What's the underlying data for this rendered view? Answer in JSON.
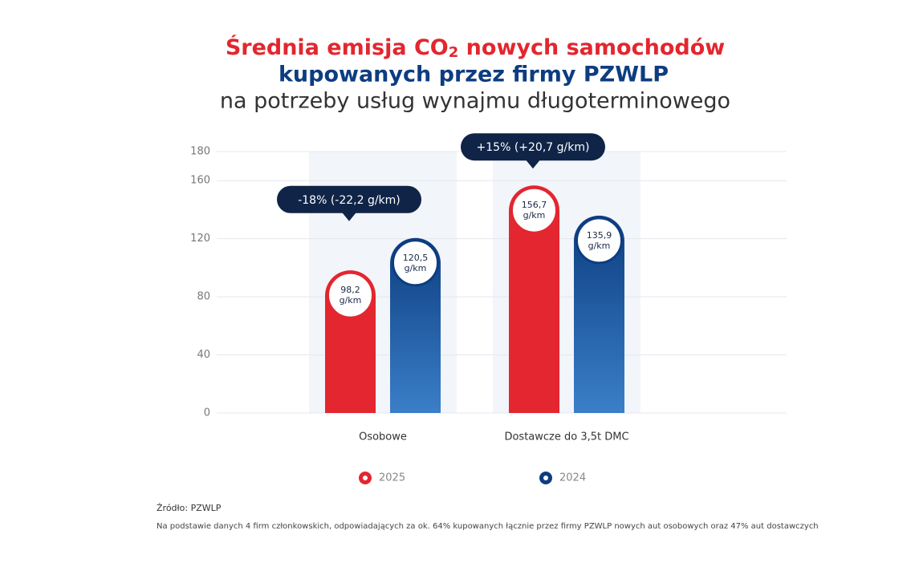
{
  "chart_data": {
    "type": "bar",
    "title": {
      "line1": {
        "before": "Średnia emisja CO",
        "subscript": "2",
        "after": "nowych samochodów"
      },
      "line2": "kupowanych przez firmy PZWLP",
      "line3": "na potrzeby usług wynajmu długoterminowego"
    },
    "categories": [
      "Osobowe",
      "Dostawcze do 3,5t DMC"
    ],
    "series": [
      {
        "name": "2025",
        "color": "#e3262f",
        "values": [
          98.2,
          156.7
        ],
        "value_labels": [
          "98,2 g/km",
          "156,7 g/km"
        ]
      },
      {
        "name": "2024",
        "color": "#0d3d80",
        "values": [
          120.5,
          135.9
        ],
        "value_labels": [
          "120,5 g/km",
          "135,9 g/km"
        ]
      }
    ],
    "annotations": [
      "-18% (-22,2 g/km)",
      "+15% (+20,7 g/km)"
    ],
    "ylim": [
      0,
      180
    ],
    "yticks": [
      0,
      40,
      80,
      120,
      160,
      180
    ],
    "grid": true,
    "source": "Źródło: PZWLP",
    "note": "Na podstawie danych 4 firm członkowskich, odpowiadających za ok. 64% kupowanych łącznie przez firmy PZWLP nowych aut osobowych oraz 47% aut dostawczych"
  }
}
